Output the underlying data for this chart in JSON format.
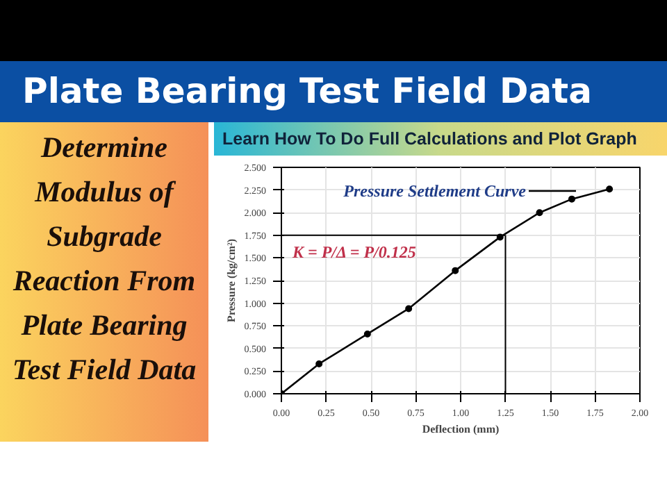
{
  "chart_data": {
    "type": "line",
    "title": "Plate Bearing Test Field Data",
    "subtitle": "Learn How To Do Full Calculations and Plot Graph",
    "xlabel": "Deflection (mm)",
    "ylabel": "Pressure (kg/cm²)",
    "x": [
      0,
      0.21,
      0.48,
      0.71,
      0.97,
      1.22,
      1.44,
      1.62,
      1.83
    ],
    "series": [
      {
        "color": "#000000",
        "values": [
          0,
          0.33,
          0.66,
          0.94,
          1.36,
          1.73,
          2.0,
          2.15,
          2.26
        ]
      }
    ],
    "xlim": [
      0,
      2
    ],
    "ylim": [
      0,
      2.5
    ],
    "xticks": [
      {
        "value": 0,
        "label": "0.00"
      },
      {
        "value": 0.25,
        "label": "0.25"
      },
      {
        "value": 0.5,
        "label": "0.50"
      },
      {
        "value": 0.75,
        "label": "0.75"
      },
      {
        "value": 1,
        "label": "1.00"
      },
      {
        "value": 1.25,
        "label": "1.25"
      },
      {
        "value": 1.5,
        "label": "1.50"
      },
      {
        "value": 1.75,
        "label": "1.75"
      },
      {
        "value": 2,
        "label": "2.00"
      }
    ],
    "yticks": [
      {
        "value": 0,
        "label": "0.000"
      },
      {
        "value": 0.25,
        "label": "0.250"
      },
      {
        "value": 0.5,
        "label": "0.500"
      },
      {
        "value": 0.75,
        "label": "0.750"
      },
      {
        "value": 1,
        "label": "1.000"
      },
      {
        "value": 1.25,
        "label": "1.250"
      },
      {
        "value": 1.5,
        "label": "1.500"
      },
      {
        "value": 1.75,
        "label": "1.750"
      },
      {
        "value": 2,
        "label": "2.000"
      },
      {
        "value": 2.25,
        "label": "2.250"
      },
      {
        "value": 2.5,
        "label": "2.500"
      }
    ],
    "ref_lines": [
      {
        "axis": "y",
        "value": 1.75,
        "color": "#000000"
      },
      {
        "axis": "x",
        "value": 1.25,
        "color": "#000000"
      }
    ],
    "annotations": [
      "Determine Modulus of Subgrade Reaction From Plate Bearing Test Field Data",
      "K = P/Δ = P/0.125",
      "Pressure Settlement Curve"
    ],
    "grid": true,
    "marker": "circle",
    "line_style": "solid"
  }
}
